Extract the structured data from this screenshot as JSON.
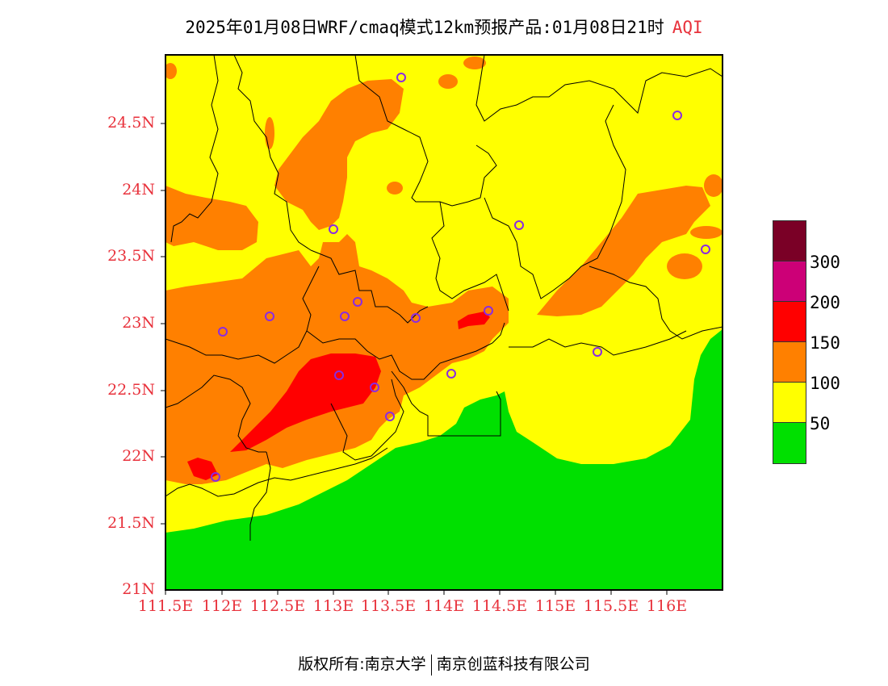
{
  "title": {
    "text": "2025年01月08日WRF/cmaq模式12km预报产品:01月08日21时",
    "variable": "AQI"
  },
  "axes": {
    "y_labels": [
      "24.5N",
      "24N",
      "23.5N",
      "23N",
      "22.5N",
      "22N",
      "21.5N",
      "21N"
    ],
    "x_labels": [
      "111.5E",
      "112E",
      "112.5E",
      "113E",
      "113.5E",
      "114E",
      "114.5E",
      "115E",
      "115.5E",
      "116E"
    ]
  },
  "legend": {
    "colors": [
      "#7a0026",
      "#cc0077",
      "#ff0000",
      "#ff8000",
      "#ffff00",
      "#00e000"
    ],
    "labels": [
      "300",
      "200",
      "150",
      "100",
      "50"
    ]
  },
  "footer": {
    "left": "版权所有:南京大学",
    "right": "南京创蓝科技有限公司"
  }
}
